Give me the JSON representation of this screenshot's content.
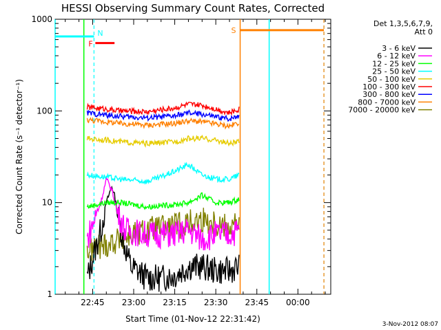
{
  "chart_data": {
    "type": "line",
    "title": "HESSI Observing Summary Count Rates, Corrected",
    "xlabel": "Start Time (01-Nov-12 22:31:42)",
    "ylabel": "Corrected Count Rate (s⁻¹ detector⁻¹)",
    "yscale": "log",
    "ylim": [
      1,
      1000
    ],
    "xlim_minutes": [
      -13.7,
      87
    ],
    "x_tick_minutes": [
      0,
      15,
      30,
      45,
      60,
      75
    ],
    "x_tick_labels": [
      "22:45",
      "23:00",
      "23:15",
      "23:30",
      "23:45",
      "00:00"
    ],
    "y_ticks": [
      1,
      10,
      100,
      1000
    ],
    "y_tick_labels": [
      "1",
      "10",
      "100",
      "1000"
    ],
    "legend_header": [
      "Det 1,3,5,6,7,9,",
      "Att 0"
    ],
    "legend_position": "right",
    "series": [
      {
        "name": "3 - 6 keV",
        "color": "#000000",
        "x": [
          -2,
          3,
          5,
          7,
          8,
          9,
          11,
          14,
          20,
          25,
          30,
          35,
          40,
          45,
          50,
          53.5
        ],
        "values": [
          1.5,
          5,
          10,
          15,
          12,
          8,
          4,
          2,
          1.5,
          1.5,
          1.6,
          2,
          2,
          1.8,
          1.8,
          2
        ]
      },
      {
        "name": "6 - 12 keV",
        "color": "#ff00ff",
        "x": [
          -2,
          3,
          5,
          7,
          9,
          12,
          20,
          30,
          35,
          40,
          45,
          50,
          53.5
        ],
        "values": [
          4,
          10,
          18,
          14,
          8,
          5,
          4.5,
          4.5,
          5,
          4,
          4.5,
          4.5,
          5
        ]
      },
      {
        "name": "12 - 25 keV",
        "color": "#00ff00",
        "x": [
          -2,
          5,
          10,
          20,
          30,
          35,
          40,
          45,
          50,
          53.5
        ],
        "values": [
          9,
          10,
          10,
          9,
          9.5,
          10,
          12,
          10,
          10,
          11
        ]
      },
      {
        "name": "25 - 50 keV",
        "color": "#00ffff",
        "x": [
          -2,
          5,
          10,
          20,
          25,
          30,
          35,
          40,
          45,
          50,
          53.5
        ],
        "values": [
          20,
          19,
          18,
          17,
          19,
          22,
          26,
          20,
          18,
          18,
          20
        ]
      },
      {
        "name": "50 - 100 keV",
        "color": "#e6cc00",
        "x": [
          -2,
          5,
          10,
          20,
          30,
          35,
          40,
          45,
          50,
          53.5
        ],
        "values": [
          50,
          48,
          46,
          44,
          46,
          50,
          50,
          48,
          44,
          46
        ]
      },
      {
        "name": "100 - 300 keV",
        "color": "#ff0000",
        "x": [
          -2,
          5,
          10,
          20,
          30,
          35,
          40,
          45,
          50,
          53.5
        ],
        "values": [
          110,
          105,
          100,
          98,
          108,
          118,
          115,
          105,
          95,
          105
        ]
      },
      {
        "name": "300 - 800 keV",
        "color": "#0000ff",
        "x": [
          -2,
          5,
          10,
          20,
          30,
          35,
          40,
          45,
          50,
          53.5
        ],
        "values": [
          95,
          90,
          87,
          84,
          88,
          95,
          92,
          86,
          82,
          90
        ]
      },
      {
        "name": "800 - 7000 keV",
        "color": "#ff8000",
        "x": [
          -2,
          5,
          10,
          20,
          30,
          35,
          40,
          45,
          50,
          53.5
        ],
        "values": [
          80,
          76,
          73,
          70,
          73,
          78,
          76,
          72,
          68,
          75
        ]
      },
      {
        "name": "7000 - 20000 keV",
        "color": "#808000",
        "x": [
          -2,
          5,
          10,
          20,
          30,
          35,
          40,
          45,
          50,
          53.5
        ],
        "values": [
          3,
          3.5,
          4,
          5,
          5.5,
          6,
          6.5,
          6,
          5.5,
          6
        ]
      }
    ],
    "markers": [
      {
        "label": "N",
        "color": "#00ffff",
        "x": 0.5,
        "x_end": 0.5,
        "style": "dashed",
        "bar_from": -13.7,
        "bar_y": 650
      },
      {
        "label": "F",
        "color": "#ff0000",
        "bar_from": 1,
        "bar_to": 8,
        "bar_y": 550
      },
      {
        "label": "S",
        "color": "#ff8000",
        "x": 53.9,
        "style": "solid",
        "bar_from": 54,
        "bar_to": 84.5,
        "bar_y": 760
      }
    ],
    "spans": [
      {
        "color": "#00ffff",
        "x_solid": -13.7,
        "x_dashed": 0.5
      },
      {
        "color": "#00ffff",
        "x_solid": 64.5,
        "x_dashed": 84.5
      },
      {
        "color": "#ff8000",
        "x_solid": 53.9,
        "x_dashed": 84.5
      },
      {
        "color": "#00ff00",
        "x_solid": -3.2,
        "x_dashed": null
      }
    ],
    "grid": false
  },
  "footer_date": "3-Nov-2012 08:07"
}
